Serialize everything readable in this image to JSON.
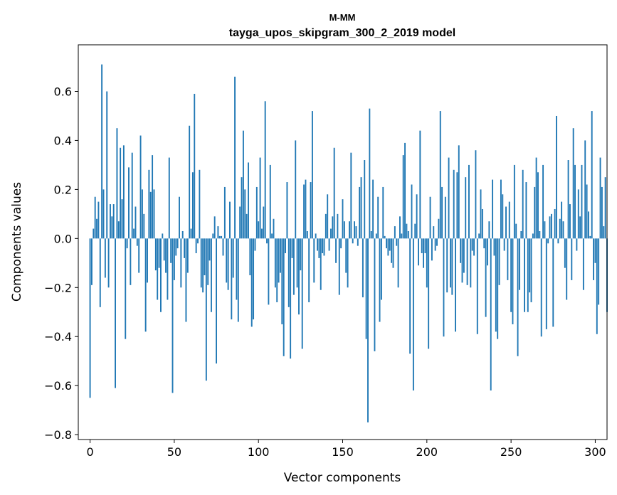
{
  "chart_data": {
    "type": "bar",
    "title": "М-ММ",
    "subtitle": "tayga_upos_skipgram_300_2_2019 model",
    "xlabel": "Vector components",
    "ylabel": "Components values",
    "xlim": [
      -7,
      307
    ],
    "ylim": [
      -0.82,
      0.79
    ],
    "xticks": [
      0,
      50,
      100,
      150,
      200,
      250,
      300
    ],
    "yticks": [
      -0.8,
      -0.6,
      -0.4,
      -0.2,
      0.0,
      0.2,
      0.4,
      0.6
    ],
    "ytick_labels": [
      "−0.8",
      "−0.6",
      "−0.4",
      "−0.2",
      "0.0",
      "0.2",
      "0.4",
      "0.6"
    ],
    "bar_color": "#1f77b4",
    "grid": false,
    "series": [
      {
        "name": "components",
        "values": [
          -0.65,
          -0.19,
          0.04,
          0.17,
          0.08,
          0.15,
          -0.28,
          0.71,
          0.2,
          -0.16,
          0.6,
          -0.2,
          0.14,
          0.09,
          0.14,
          -0.61,
          0.45,
          0.07,
          0.37,
          0.16,
          0.38,
          -0.41,
          -0.04,
          0.29,
          -0.19,
          0.35,
          0.04,
          0.13,
          -0.03,
          -0.14,
          0.42,
          0.2,
          0.1,
          -0.38,
          -0.18,
          0.28,
          0.19,
          0.34,
          0.2,
          -0.13,
          -0.25,
          -0.12,
          -0.3,
          0.02,
          -0.09,
          -0.14,
          -0.25,
          0.33,
          -0.1,
          -0.63,
          -0.17,
          -0.07,
          -0.04,
          0.17,
          -0.2,
          0.03,
          -0.08,
          -0.34,
          -0.14,
          0.46,
          0.04,
          0.27,
          0.59,
          -0.06,
          -0.02,
          0.28,
          -0.2,
          -0.22,
          -0.15,
          -0.58,
          -0.19,
          -0.09,
          -0.3,
          0.02,
          0.09,
          -0.51,
          0.05,
          0.01,
          0.01,
          -0.07,
          0.21,
          -0.18,
          -0.21,
          0.15,
          -0.33,
          -0.16,
          0.66,
          -0.25,
          -0.34,
          0.13,
          0.25,
          0.44,
          0.2,
          0.1,
          0.31,
          -0.15,
          -0.36,
          -0.33,
          -0.05,
          0.21,
          0.07,
          0.33,
          0.04,
          0.13,
          0.56,
          -0.02,
          -0.27,
          0.3,
          0.02,
          0.08,
          -0.2,
          -0.26,
          -0.18,
          -0.14,
          -0.35,
          -0.48,
          -0.06,
          0.23,
          -0.28,
          -0.49,
          -0.08,
          -0.23,
          0.4,
          -0.2,
          -0.31,
          -0.13,
          -0.45,
          0.22,
          0.24,
          0.03,
          -0.26,
          0.23,
          0.52,
          -0.18,
          0.02,
          -0.05,
          -0.08,
          -0.21,
          -0.06,
          -0.07,
          0.1,
          0.18,
          -0.05,
          0.04,
          0.09,
          0.37,
          -0.1,
          0.1,
          -0.23,
          -0.04,
          0.16,
          0.07,
          -0.14,
          -0.2,
          0.07,
          0.35,
          -0.02,
          0.07,
          0.05,
          -0.03,
          0.21,
          0.25,
          -0.24,
          0.32,
          -0.41,
          -0.75,
          0.53,
          0.03,
          0.24,
          -0.46,
          0.02,
          0.17,
          -0.34,
          -0.25,
          0.21,
          0.01,
          -0.04,
          -0.07,
          -0.05,
          -0.1,
          -0.12,
          0.05,
          -0.03,
          -0.2,
          0.09,
          0.02,
          0.34,
          0.39,
          0.06,
          0.03,
          -0.47,
          0.22,
          -0.62,
          0.06,
          0.18,
          -0.11,
          0.44,
          -0.06,
          -0.12,
          -0.06,
          -0.2,
          -0.45,
          0.17,
          -0.09,
          0.05,
          -0.05,
          -0.03,
          0.08,
          0.52,
          0.21,
          -0.4,
          0.17,
          -0.22,
          0.33,
          -0.2,
          -0.23,
          0.28,
          -0.38,
          0.27,
          0.38,
          -0.1,
          -0.18,
          -0.14,
          0.25,
          -0.19,
          0.3,
          -0.2,
          -0.05,
          -0.07,
          0.36,
          -0.39,
          0.02,
          0.2,
          0.12,
          -0.04,
          -0.32,
          -0.11,
          0.07,
          -0.62,
          0.24,
          -0.07,
          -0.38,
          -0.41,
          -0.19,
          0.24,
          0.18,
          -0.05,
          0.13,
          -0.17,
          0.15,
          -0.3,
          -0.35,
          0.3,
          0.06,
          -0.48,
          -0.21,
          0.03,
          0.28,
          -0.3,
          0.23,
          -0.3,
          -0.22,
          -0.26,
          0.02,
          0.21,
          0.33,
          0.27,
          0.03,
          -0.4,
          0.3,
          0.07,
          -0.37,
          -0.02,
          0.09,
          0.1,
          -0.36,
          0.12,
          0.5,
          -0.02,
          0.08,
          0.15,
          0.07,
          -0.12,
          -0.25,
          0.32,
          0.14,
          -0.17,
          0.45,
          0.3,
          -0.05,
          0.2,
          0.09,
          0.3,
          -0.21,
          0.4,
          0.22,
          0.11,
          0.01,
          0.52,
          -0.17,
          -0.1,
          -0.39,
          -0.27,
          0.33,
          0.21,
          0.05,
          0.25,
          -0.3
        ]
      }
    ]
  }
}
